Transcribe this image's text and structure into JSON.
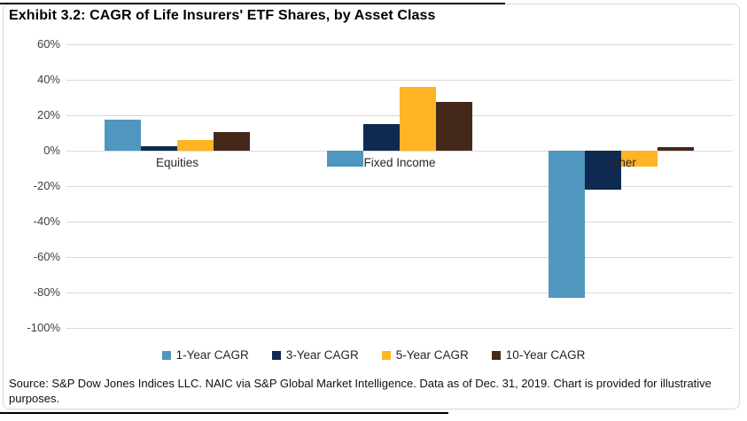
{
  "header": {
    "title": "Exhibit 3.2: CAGR of Life Insurers' ETF Shares, by Asset Class"
  },
  "chart_data": {
    "type": "bar",
    "title": "Exhibit 3.2: CAGR of Life Insurers' ETF Shares, by Asset Class",
    "categories": [
      "Equities",
      "Fixed Income",
      "Other"
    ],
    "series": [
      {
        "name": "1-Year CAGR",
        "color": "#4f97be",
        "values": [
          17.5,
          -9,
          -83
        ]
      },
      {
        "name": "3-Year CAGR",
        "color": "#0e2a50",
        "values": [
          2.5,
          15,
          -22
        ]
      },
      {
        "name": "5-Year CAGR",
        "color": "#ffb423",
        "values": [
          6,
          36,
          -9
        ]
      },
      {
        "name": "10-Year CAGR",
        "color": "#44291b",
        "values": [
          10.5,
          27.5,
          2
        ]
      }
    ],
    "xlabel": "",
    "ylabel": "",
    "ylim": [
      -100,
      60
    ],
    "ytick_step": 20,
    "ytick_format": "percent",
    "grid": true,
    "legend_position": "bottom"
  },
  "footer": {
    "source": "Source: S&P Dow Jones Indices LLC. NAIC via S&P Global Market Intelligence. Data as of Dec. 31, 2019. Chart is provided for illustrative purposes."
  }
}
